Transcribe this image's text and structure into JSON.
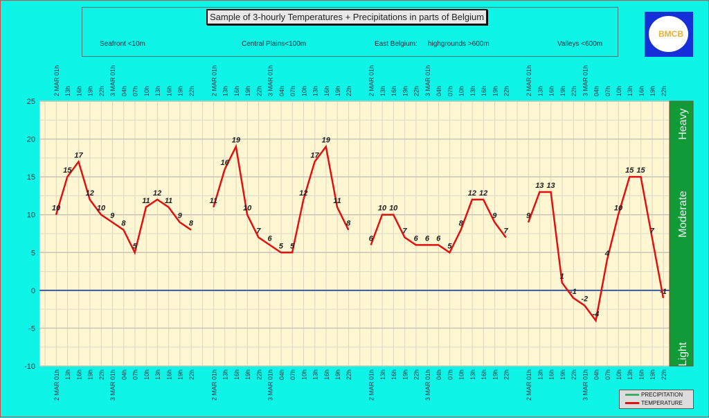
{
  "header": {
    "title": "Sample of 3-hourly Temperatures + Precipitations in parts of Belgium",
    "regions": [
      "Seafront <10m",
      "Central Plains<100m",
      "East Belgium:",
      "highgrounds >600m",
      "Valleys <600m"
    ],
    "logo_text": "BMCB"
  },
  "chart_data": {
    "type": "line",
    "title": "Sample of 3-hourly Temperatures + Precipitations in parts of Belgium",
    "x_tick_labels": [
      "2 MAR 01h",
      "13h",
      "16h",
      "19h",
      "22h",
      "3 MAR 01h",
      "04h",
      "07h",
      "10h",
      "13h",
      "16h",
      "19h",
      "22h"
    ],
    "groups": [
      "Seafront <10m",
      "Central Plains<100m",
      "East Belgium: highgrounds >600m",
      "Valleys <600m"
    ],
    "series": [
      {
        "name": "TEMPERATURE",
        "color": "#e01010",
        "groups": [
          [
            10,
            15,
            17,
            12,
            10,
            9,
            8,
            5,
            11,
            12,
            11,
            9,
            8
          ],
          [
            11,
            16,
            19,
            10,
            7,
            6,
            5,
            5,
            12,
            17,
            19,
            11,
            8
          ],
          [
            6,
            10,
            10,
            7,
            6,
            6,
            6,
            5,
            8,
            12,
            12,
            9,
            7
          ],
          [
            9,
            13,
            13,
            1,
            -1,
            -2,
            -4,
            4,
            10,
            15,
            15,
            7,
            -1
          ]
        ]
      },
      {
        "name": "PRECIPITATION",
        "color": "#3cb060",
        "groups": []
      }
    ],
    "ylim": [
      -10,
      25
    ],
    "y_ticks": [
      -10,
      -5,
      0,
      5,
      10,
      15,
      20,
      25
    ],
    "precip_scale": [
      "Light",
      "Moderate",
      "Heavy"
    ],
    "grid": true,
    "legend": "bottom-right"
  },
  "legend": {
    "items": [
      "PRECIPITATION",
      "TEMPERATURE"
    ]
  }
}
